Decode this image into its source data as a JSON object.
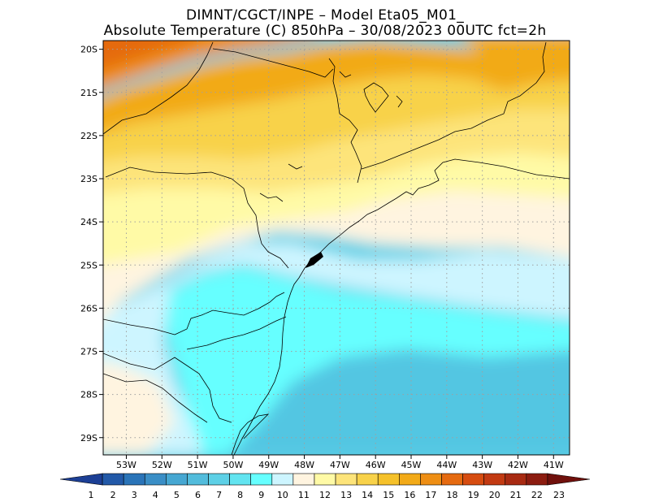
{
  "title_line1": "DIMNT/CGCT/INPE –  Model Eta05_M01_",
  "title_line2": "Absolute Temperature (C) 850hPa –  30/08/2023 00UTC fct=2h",
  "lat_labels": [
    "20S",
    "21S",
    "22S",
    "23S",
    "24S",
    "25S",
    "26S",
    "27S",
    "28S",
    "29S"
  ],
  "lat_values": [
    -20,
    -21,
    -22,
    -23,
    -24,
    -25,
    -26,
    -27,
    -28,
    -29
  ],
  "lon_labels": [
    "53W",
    "52W",
    "51W",
    "50W",
    "49W",
    "48W",
    "47W",
    "46W",
    "45W",
    "44W",
    "43W",
    "42W",
    "41W"
  ],
  "lon_values": [
    -53,
    -52,
    -51,
    -50,
    -49,
    -48,
    -47,
    -46,
    -45,
    -44,
    -43,
    -42,
    -41
  ],
  "extent": {
    "lon_min": -53.65,
    "lon_max": -40.55,
    "lat_min": -29.4,
    "lat_max": -19.8
  },
  "colorbar": {
    "labels": [
      "1",
      "2",
      "3",
      "4",
      "5",
      "6",
      "7",
      "8",
      "9",
      "10",
      "11",
      "12",
      "13",
      "14",
      "15",
      "16",
      "17",
      "18",
      "19",
      "20",
      "21",
      "22",
      "23"
    ],
    "colors": [
      "#1c3f95",
      "#2259a8",
      "#2a74b8",
      "#3a8ec6",
      "#46a7d2",
      "#52bcdc",
      "#5dd0e6",
      "#62e4f0",
      "#66ffff",
      "#cdf5ff",
      "#fff4e0",
      "#fffaa6",
      "#fde47a",
      "#f8d24a",
      "#f5c12a",
      "#f2aa18",
      "#ee8e14",
      "#e56a10",
      "#d64c10",
      "#c23a12",
      "#a82a12",
      "#8c1c10",
      "#70100c"
    ]
  },
  "colors": {
    "grid": "#a0a0a0",
    "border": "#000000"
  }
}
